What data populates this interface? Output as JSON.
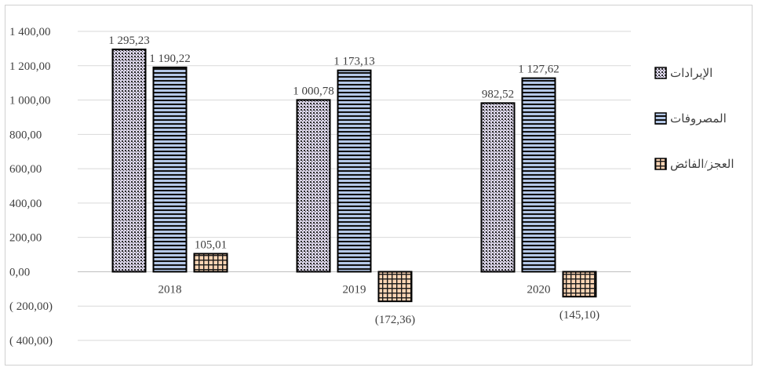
{
  "chart_data": {
    "type": "bar",
    "title": "",
    "xlabel": "",
    "ylabel": "",
    "categories": [
      "2018",
      "2019",
      "2020"
    ],
    "ylim": [
      -400,
      1400
    ],
    "yticks": [
      1400,
      1200,
      1000,
      800,
      600,
      400,
      200,
      0,
      -200,
      -400
    ],
    "ytick_labels": [
      "1 400,00",
      "1 200,00",
      "1 000,00",
      "800,00",
      "600,00",
      "400,00",
      "200,00",
      "0,00",
      "( 200,00)",
      "( 400,00)"
    ],
    "grid": true,
    "legend_position": "right",
    "series": [
      {
        "name": "الإيرادات",
        "values": [
          1295.23,
          1000.78,
          982.52
        ],
        "labels": [
          "1 295,23",
          "1 000,78",
          "982,52"
        ],
        "color": "#d9d2e9",
        "pattern": "dots"
      },
      {
        "name": "المصروفات",
        "values": [
          1190.22,
          1173.13,
          1127.62
        ],
        "labels": [
          "1 190,22",
          "1 173,13",
          "1 127,62"
        ],
        "color": "#b4c7e7",
        "pattern": "horizontal-stripes"
      },
      {
        "name": "العجز/الفائض",
        "values": [
          105.01,
          -172.36,
          -145.1
        ],
        "labels": [
          "105,01",
          "(172,36)",
          "(145,10)"
        ],
        "color": "#fbd4b4",
        "pattern": "grid"
      }
    ]
  }
}
